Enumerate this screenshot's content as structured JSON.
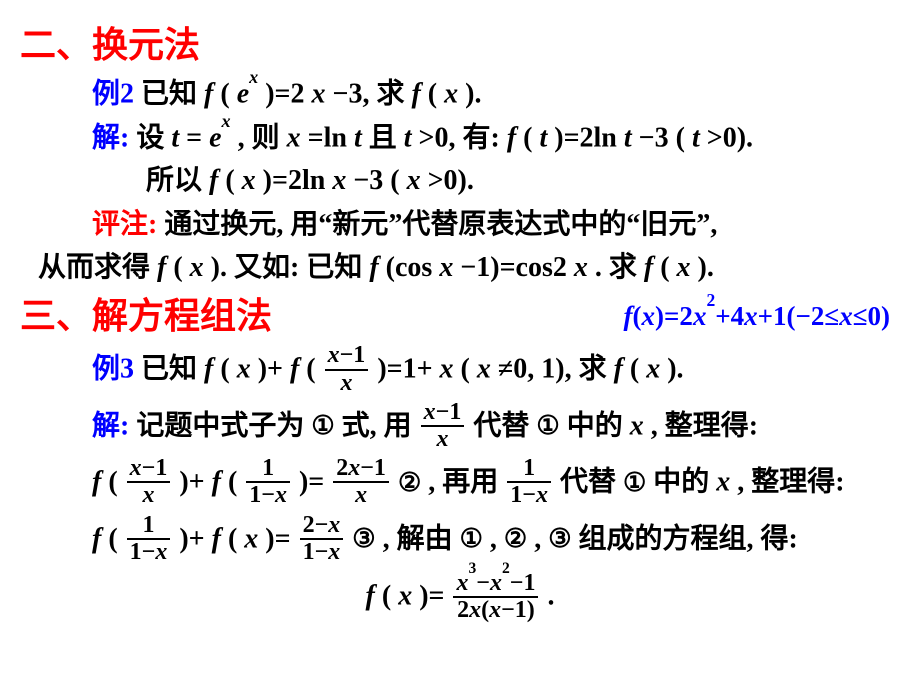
{
  "styling": {
    "background_color": "#ffffff",
    "text_color": "#000000",
    "section_title_color": "#ff0000",
    "example_number_color": "#0000ff",
    "solution_label_color": "#0000ff",
    "comment_label_color": "#ff0000",
    "answer_color": "#0000ff",
    "base_fontsize": 28,
    "section_fontsize": 36,
    "font_family": "SimSun / Times New Roman",
    "font_weight": "bold"
  },
  "section2": {
    "title": "二、换元法",
    "ex2": {
      "label": "例2",
      "problem_a": " 已知 ",
      "problem_b": "f",
      "problem_c": "(",
      "problem_d": "e",
      "problem_e": "x",
      "problem_f": ")=2",
      "problem_g": "x",
      "problem_h": "−3,  求 ",
      "problem_i": "f",
      "problem_j": "(",
      "problem_k": "x",
      "problem_l": ")."
    },
    "sol2": {
      "label": "解:",
      "line1_a": " 设 ",
      "line1_b": "t",
      "line1_c": "=",
      "line1_d": "e",
      "line1_e": "x",
      "line1_f": ",  则 ",
      "line1_g": "x",
      "line1_h": "=ln",
      "line1_i": "t",
      "line1_j": " 且 ",
      "line1_k": "t",
      "line1_l": ">0,  有: ",
      "line1_m": "f",
      "line1_n": "(",
      "line1_o": "t",
      "line1_p": ")=2ln",
      "line1_q": "t",
      "line1_r": "−3 (",
      "line1_s": "t",
      "line1_t": ">0).",
      "line2_a": "所以 ",
      "line2_b": "f",
      "line2_c": "(",
      "line2_d": "x",
      "line2_e": ")=2ln",
      "line2_f": "x",
      "line2_g": "−3 (",
      "line2_h": "x",
      "line2_i": ">0)."
    },
    "comment": {
      "label": "评注:",
      "line1": " 通过换元, 用“新元”代替原表达式中的“旧元”,",
      "line2_a": "从而求得",
      "line2_b": "f",
      "line2_c": "(",
      "line2_d": "x",
      "line2_e": "). 又如: 已知 ",
      "line2_f": "f",
      "line2_g": "(cos",
      "line2_h": "x",
      "line2_i": "−1)=cos2",
      "line2_j": "x",
      "line2_k": ". 求 ",
      "line2_l": "f",
      "line2_m": "(",
      "line2_n": "x",
      "line2_o": ")."
    }
  },
  "section3": {
    "title": "三、解方程组法",
    "answer_a": "f",
    "answer_b": "(",
    "answer_c": "x",
    "answer_d": ")=2",
    "answer_e": "x",
    "answer_f": "2",
    "answer_g": "+4",
    "answer_h": "x",
    "answer_i": "+1(−2≤",
    "answer_j": "x",
    "answer_k": "≤0)",
    "ex3": {
      "label": "例3",
      "a": " 已知 ",
      "b": "f",
      "c": "(",
      "d": "x",
      "e": ")+",
      "f": "f",
      "g": "( ",
      "frac1_num_a": "x",
      "frac1_num_b": "−1",
      "frac1_den": "x",
      "h": ")=1+",
      "i": "x",
      "j": " (",
      "k": "x",
      "l": "≠0, 1),  求 ",
      "m": "f",
      "n": "(",
      "o": "x",
      "p": ")."
    },
    "sol3": {
      "label": "解:",
      "l1_a": " 记题中式子为",
      "c1": "①",
      "l1_b": "式,  用 ",
      "frac2_num_a": "x",
      "frac2_num_b": "−1",
      "frac2_den": "x",
      "l1_c": "代替",
      "l1_d": "中的 ",
      "l1_e": "x",
      "l1_f": ",  整理得:",
      "l2_a": "f",
      "l2_b": "( ",
      "frac3_num_a": "x",
      "frac3_num_b": "−1",
      "frac3_den": "x",
      "l2_c": ")+",
      "l2_d": "f",
      "l2_e": "( ",
      "frac4_num": "1",
      "frac4_den_a": "1−",
      "frac4_den_b": "x",
      "l2_f": ")= ",
      "frac5_num_a": "2",
      "frac5_num_b": "x",
      "frac5_num_c": "−1",
      "frac5_den": "x",
      "l2_g": "  ",
      "c2": "②",
      "l2_h": ", 再用 ",
      "frac6_num": "1",
      "frac6_den_a": "1−",
      "frac6_den_b": "x",
      "l2_i": "代替",
      "l2_j": "中的 ",
      "l2_k": "x",
      "l2_l": ",  整理得:",
      "l3_a": "f",
      "l3_b": "( ",
      "frac7_num": "1",
      "frac7_den_a": "1−",
      "frac7_den_b": "x",
      "l3_c": ")+",
      "l3_d": "f",
      "l3_e": "(",
      "l3_f": "x",
      "l3_g": ")= ",
      "frac8_num_a": "2−",
      "frac8_num_b": "x",
      "frac8_den_a": "1−",
      "frac8_den_b": "x",
      "l3_h": "  ",
      "c3": "③",
      "l3_i": ", 解由",
      "l3_j": ",",
      "l3_k": ",",
      "l3_l": "组成的方程组, 得:",
      "l4_a": "f",
      "l4_b": "(",
      "l4_c": "x",
      "l4_d": ")= ",
      "frac9_num_a": "x",
      "frac9_num_b": "3",
      "frac9_num_c": "−",
      "frac9_num_d": "x",
      "frac9_num_e": "2",
      "frac9_num_f": "−1",
      "frac9_den_a": "2",
      "frac9_den_b": "x",
      "frac9_den_c": "(",
      "frac9_den_d": "x",
      "frac9_den_e": "−1)",
      "l4_e": " ."
    }
  }
}
